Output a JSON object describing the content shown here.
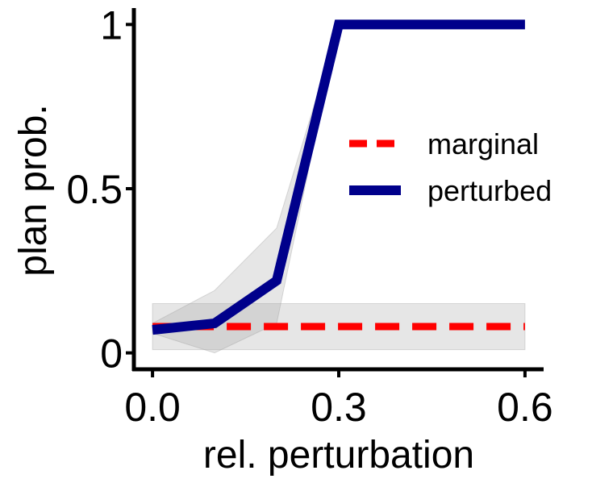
{
  "chart_data": {
    "type": "line",
    "xlabel": "rel. perturbation",
    "ylabel": "plan prob.",
    "xlim": [
      -0.03,
      0.63
    ],
    "ylim": [
      -0.05,
      1.05
    ],
    "xticks": [
      {
        "value": 0.0,
        "label": "0.0"
      },
      {
        "value": 0.3,
        "label": "0.3"
      },
      {
        "value": 0.6,
        "label": "0.6"
      }
    ],
    "yticks": [
      {
        "value": 0,
        "label": "0"
      },
      {
        "value": 0.5,
        "label": "0.5"
      },
      {
        "value": 1,
        "label": "1"
      }
    ],
    "grid": false,
    "legend_position": "right",
    "series": [
      {
        "name": "marginal",
        "style": "dashed",
        "color": "#ff0000",
        "x": [
          0.0,
          0.6
        ],
        "y": [
          0.08,
          0.08
        ],
        "band_lower": [
          0.01,
          0.01
        ],
        "band_upper": [
          0.15,
          0.15
        ]
      },
      {
        "name": "perturbed",
        "style": "solid",
        "color": "#00008b",
        "x": [
          0.0,
          0.1,
          0.2,
          0.3,
          0.6
        ],
        "y": [
          0.07,
          0.09,
          0.22,
          1.0,
          1.0
        ],
        "band_lower": [
          0.06,
          0.0,
          0.09,
          1.0,
          1.0
        ],
        "band_upper": [
          0.09,
          0.19,
          0.38,
          1.0,
          1.0
        ]
      }
    ]
  }
}
